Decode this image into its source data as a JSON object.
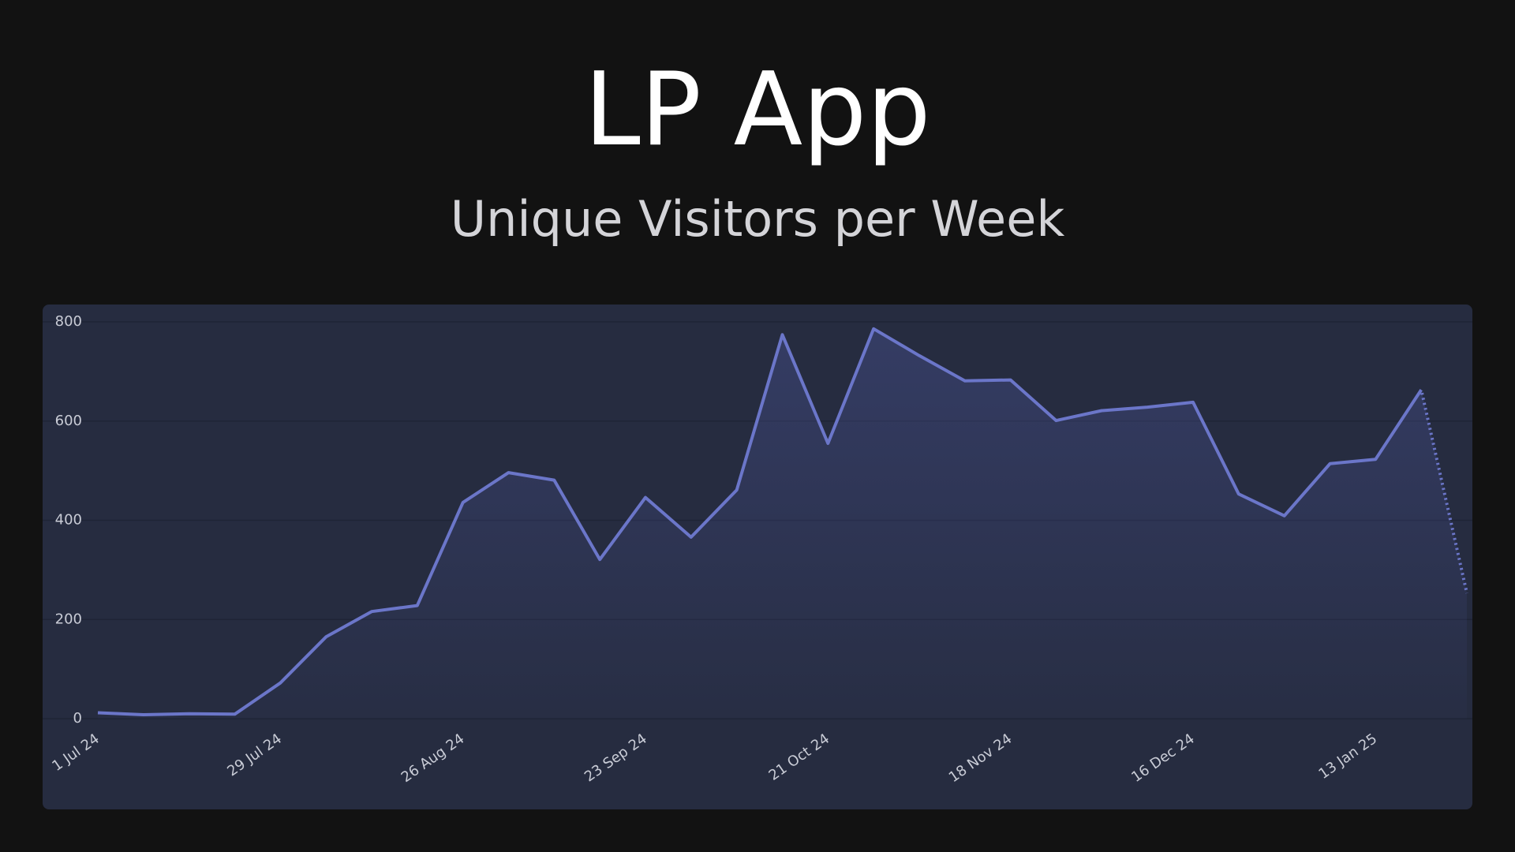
{
  "chart_data": {
    "type": "line",
    "title": "LP App",
    "subtitle": "Unique Visitors per Week",
    "categories": [
      "1 Jul 24",
      null,
      null,
      null,
      "29 Jul 24",
      null,
      null,
      null,
      "26 Aug 24",
      null,
      null,
      null,
      "23 Sep 24",
      null,
      null,
      null,
      "21 Oct 24",
      null,
      null,
      null,
      "18 Nov 24",
      null,
      null,
      null,
      "16 Dec 24",
      null,
      null,
      null,
      "13 Jan 25",
      null,
      null
    ],
    "series": [
      {
        "color": "#6b76c9",
        "values": [
          12,
          8,
          10,
          9,
          72,
          165,
          216,
          228,
          436,
          496,
          481,
          321,
          446,
          366,
          461,
          774,
          555,
          786,
          732,
          681,
          683,
          601,
          621,
          628,
          638,
          453,
          409,
          514,
          523,
          663,
          253
        ]
      }
    ],
    "ylim": [
      0,
      800
    ],
    "yticks": [
      0,
      200,
      400,
      600,
      800
    ],
    "grid": true,
    "last_segment_dotted": true
  }
}
